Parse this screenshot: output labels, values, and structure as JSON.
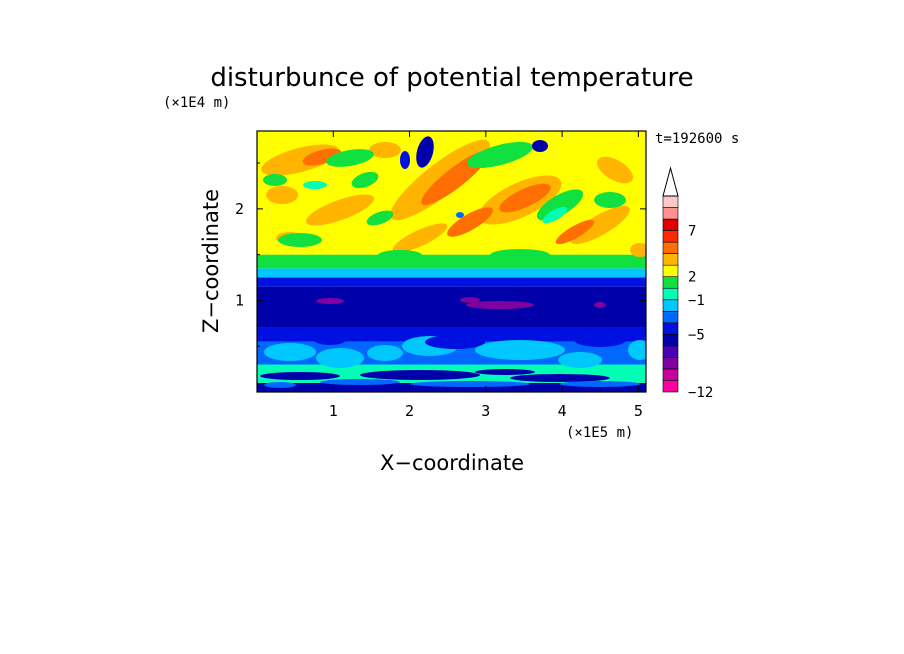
{
  "chart_data": {
    "type": "heatmap",
    "title": "disturbunce of potential temperature",
    "time_label": "t=192600 s",
    "xlabel": "X−coordinate",
    "ylabel": "Z−coordinate",
    "x_unit": "(×1E5 m)",
    "y_unit": "(×1E4 m)",
    "xlim": [
      0,
      5.1
    ],
    "ylim": [
      0,
      2.85
    ],
    "x_ticks": [
      "1",
      "2",
      "3",
      "4",
      "5"
    ],
    "y_ticks": [
      "1",
      "2"
    ],
    "colorbar": {
      "extend": "max",
      "tick_labels": [
        "7",
        "2",
        "−1",
        "−5",
        "−12"
      ],
      "colors": [
        "#ff00a0",
        "#c8009c",
        "#8000a0",
        "#4b00b4",
        "#0000aa",
        "#0010e0",
        "#0068ff",
        "#00c8ff",
        "#00ffb4",
        "#10e040",
        "#ffff00",
        "#ffb400",
        "#ff6e00",
        "#ff2800",
        "#e00000",
        "#ff9090",
        "#ffc8c8"
      ]
    },
    "layers": [
      {
        "z_range": [
          0.0,
          0.1
        ],
        "color": "#0000aa"
      },
      {
        "z_range": [
          0.1,
          0.3
        ],
        "color": "#00ffb4"
      },
      {
        "z_range": [
          0.3,
          0.55
        ],
        "color": "#0068ff"
      },
      {
        "z_range": [
          0.55,
          0.7
        ],
        "color": "#0010e0"
      },
      {
        "z_range": [
          0.7,
          1.15
        ],
        "color": "#0000aa"
      },
      {
        "z_range": [
          1.15,
          1.25
        ],
        "color": "#0010e0"
      },
      {
        "z_range": [
          1.25,
          1.35
        ],
        "color": "#00c8ff"
      },
      {
        "z_range": [
          1.35,
          1.5
        ],
        "color": "#10e040"
      },
      {
        "z_range": [
          1.5,
          2.85
        ],
        "color": "#ffff00"
      }
    ]
  }
}
